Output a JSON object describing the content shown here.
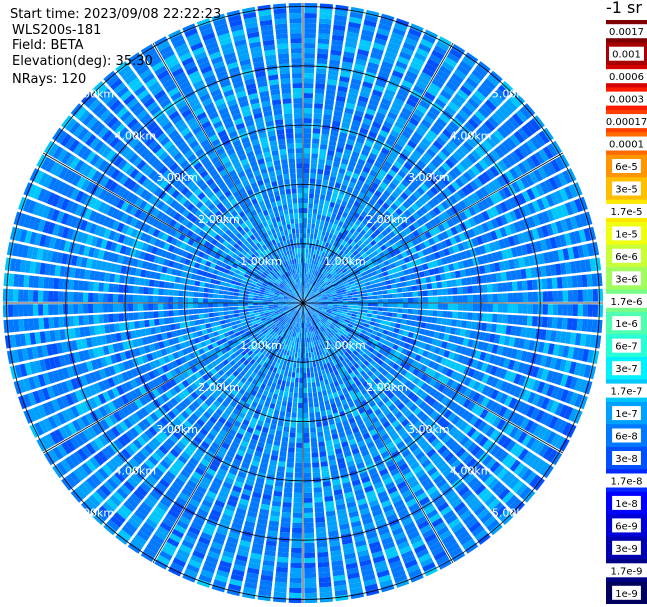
{
  "header": {
    "start_time": "Start time: 2023/09/08 22:22:23",
    "instrument": "WLS200s-181",
    "field": "Field: BETA",
    "elevation": "Elevation(deg): 35.30",
    "nrays": "NRays: 120"
  },
  "colorbar": {
    "title": "-1 sr",
    "labels": [
      "0.0017",
      "0.001",
      "0.0006",
      "0.0003",
      "0.00017",
      "0.0001",
      "6e-5",
      "3e-5",
      "1.7e-5",
      "1e-5",
      "6e-6",
      "3e-6",
      "1.7e-6",
      "1e-6",
      "6e-7",
      "3e-7",
      "1.7e-7",
      "1e-7",
      "6e-8",
      "3e-8",
      "1.7e-8",
      "1e-8",
      "6e-9",
      "3e-9",
      "1.7e-9",
      "1e-9"
    ],
    "colors": [
      "#7f0000",
      "#a80000",
      "#d20000",
      "#ff1a00",
      "#ff3f00",
      "#ff6a00",
      "#ff9500",
      "#ffbf00",
      "#ffe800",
      "#f0ff0f",
      "#c8ff37",
      "#a0ff5f",
      "#78ff87",
      "#50ffaf",
      "#28ffd7",
      "#00f0ff",
      "#00c8ff",
      "#00a0ff",
      "#0078ff",
      "#0050ff",
      "#0028ff",
      "#0000ff",
      "#0000d7",
      "#0000af",
      "#000087",
      "#00005f"
    ]
  },
  "chart_data": {
    "type": "heatmap",
    "subtype": "polar PPI scan",
    "rays": 120,
    "max_range_km": 6.2,
    "range_rings_km": [
      1,
      2,
      3,
      4,
      5
    ],
    "ring_labels": [
      "1.00km",
      "2.00km",
      "3.00km",
      "4.00km",
      "5.00km"
    ],
    "spokes_deg": [
      0,
      30,
      60,
      90,
      120,
      150,
      180,
      210,
      240,
      270,
      300,
      330
    ],
    "dominant_value_range": [
      "1e-7",
      "3e-8"
    ],
    "note_colors": [
      "#0078ff",
      "#00a0ff",
      "#00c8ff",
      "#0050ff"
    ]
  }
}
